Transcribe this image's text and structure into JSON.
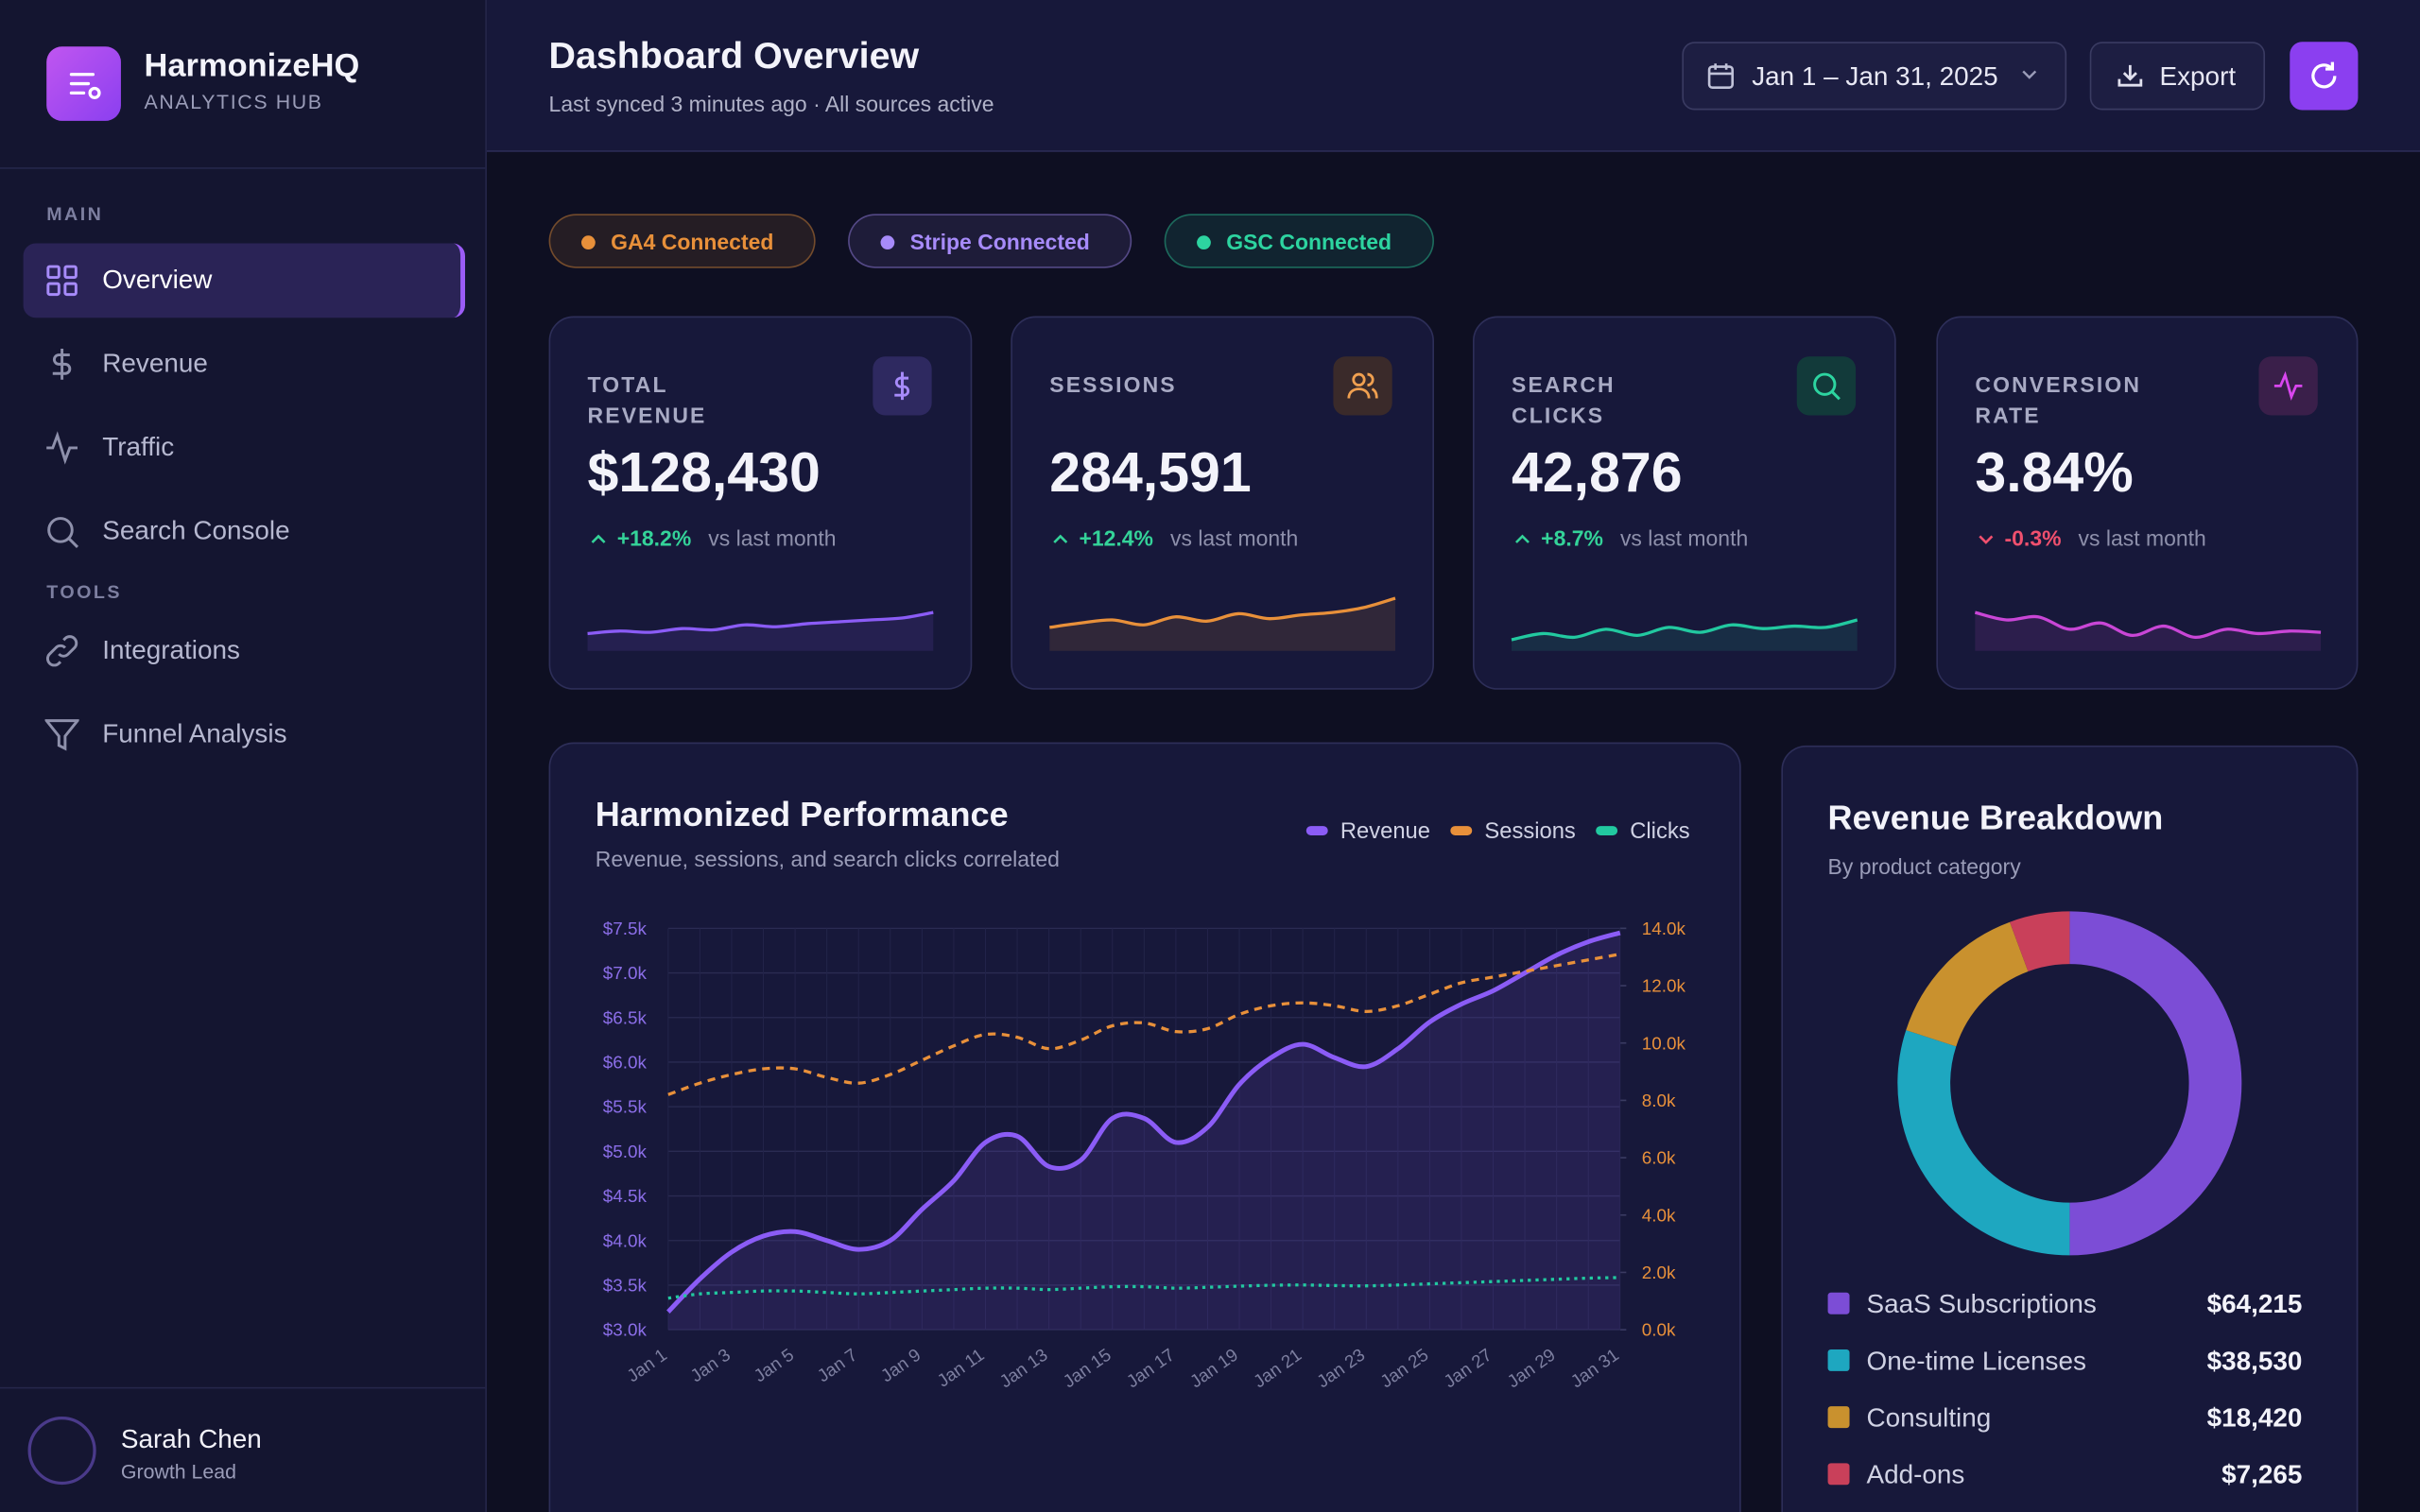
{
  "sidebar": {
    "brand": "HarmonizeHQ",
    "tagline": "ANALYTICS HUB",
    "sections": [
      {
        "title": "MAIN",
        "items": [
          "Overview",
          "Revenue",
          "Traffic",
          "Search Console"
        ]
      },
      {
        "title": "TOOLS",
        "items": [
          "Integrations",
          "Funnel Analysis"
        ]
      }
    ],
    "user": {
      "name": "Sarah Chen",
      "role": "Growth Lead"
    }
  },
  "header": {
    "title": "Dashboard Overview",
    "subtitle": "Last synced 3 minutes ago · All sources active",
    "date_range": "Jan 1 – Jan 31, 2025",
    "export": "Export"
  },
  "badges": [
    {
      "label": "GA4 Connected",
      "color": "#e8903a"
    },
    {
      "label": "Stripe Connected",
      "color": "#a78bfa"
    },
    {
      "label": "GSC Connected",
      "color": "#2dd4a0"
    }
  ],
  "kpis": [
    {
      "label": "TOTAL REVENUE",
      "value": "$128,430",
      "change": "+18.2%",
      "comparison": "vs last month",
      "trend": "up",
      "color": "#8b5cf6",
      "sparkline": [
        28,
        32,
        30,
        36,
        34,
        42,
        39,
        44,
        47,
        50,
        53,
        62
      ],
      "sparkline_ylim": [
        0,
        100
      ]
    },
    {
      "label": "SESSIONS",
      "value": "284,591",
      "change": "+12.4%",
      "comparison": "vs last month",
      "trend": "up",
      "color": "#e8903a",
      "sparkline": [
        38,
        45,
        50,
        42,
        55,
        48,
        60,
        52,
        58,
        62,
        70,
        85
      ],
      "sparkline_ylim": [
        0,
        100
      ]
    },
    {
      "label": "SEARCH CLICKS",
      "value": "42,876",
      "change": "+8.7%",
      "comparison": "vs last month",
      "trend": "up",
      "color": "#22c9a0",
      "sparkline": [
        18,
        28,
        22,
        35,
        25,
        38,
        30,
        42,
        36,
        40,
        38,
        50
      ],
      "sparkline_ylim": [
        0,
        100
      ]
    },
    {
      "label": "CONVERSION RATE",
      "value": "3.84%",
      "change": "-0.3%",
      "comparison": "vs last month",
      "trend": "down",
      "color": "#c946d6",
      "sparkline": [
        62,
        50,
        55,
        35,
        45,
        25,
        40,
        22,
        35,
        28,
        32,
        30
      ],
      "sparkline_ylim": [
        0,
        100
      ]
    }
  ],
  "chart_data": [
    {
      "type": "line",
      "title": "Harmonized Performance",
      "subtitle": "Revenue, sessions, and search clicks correlated",
      "categories": [
        "Jan 1",
        null,
        "Jan 3",
        null,
        "Jan 5",
        null,
        "Jan 7",
        null,
        "Jan 9",
        null,
        "Jan 11",
        null,
        "Jan 13",
        null,
        "Jan 15",
        null,
        "Jan 17",
        null,
        "Jan 19",
        null,
        "Jan 21",
        null,
        "Jan 23",
        null,
        "Jan 25",
        null,
        "Jan 27",
        null,
        "Jan 29",
        null,
        "Jan 31"
      ],
      "series": [
        {
          "name": "Revenue",
          "color": "#8b5cf6",
          "style": "solid",
          "values": [
            3200,
            3570,
            3870,
            4050,
            4100,
            4000,
            3900,
            4000,
            4350,
            4670,
            5100,
            5170,
            4830,
            4900,
            5370,
            5370,
            5100,
            5270,
            5750,
            6050,
            6200,
            6050,
            5950,
            6150,
            6450,
            6650,
            6800,
            7000,
            7200,
            7350,
            7450
          ]
        },
        {
          "name": "Sessions",
          "color": "#e8903a",
          "style": "dashed",
          "axis": "y2",
          "values": [
            8200,
            8600,
            8900,
            9100,
            9100,
            8800,
            8600,
            8900,
            9400,
            9900,
            10300,
            10200,
            9800,
            10100,
            10600,
            10700,
            10400,
            10500,
            11000,
            11300,
            11400,
            11300,
            11100,
            11300,
            11700,
            12100,
            12300,
            12500,
            12700,
            12900,
            13100
          ]
        },
        {
          "name": "Clicks",
          "color": "#22c9a0",
          "style": "dotted",
          "axis": "y2",
          "values": [
            1100,
            1250,
            1300,
            1350,
            1350,
            1300,
            1250,
            1300,
            1350,
            1400,
            1450,
            1450,
            1400,
            1450,
            1500,
            1500,
            1450,
            1480,
            1520,
            1550,
            1560,
            1540,
            1530,
            1560,
            1600,
            1640,
            1680,
            1720,
            1760,
            1800,
            1820
          ]
        }
      ],
      "ylim": [
        3000,
        7500
      ],
      "yticks": [
        {
          "value": 3000,
          "label": "$3.0k"
        },
        {
          "value": 3500,
          "label": "$3.5k"
        },
        {
          "value": 4000,
          "label": "$4.0k"
        },
        {
          "value": 4500,
          "label": "$4.5k"
        },
        {
          "value": 5000,
          "label": "$5.0k"
        },
        {
          "value": 5500,
          "label": "$5.5k"
        },
        {
          "value": 6000,
          "label": "$6.0k"
        },
        {
          "value": 6500,
          "label": "$6.5k"
        },
        {
          "value": 7000,
          "label": "$7.0k"
        },
        {
          "value": 7500,
          "label": "$7.5k"
        }
      ],
      "y2lim": [
        0,
        14000
      ],
      "y2ticks": [
        {
          "value": 0,
          "label": "0.0k"
        },
        {
          "value": 2000,
          "label": "2.0k"
        },
        {
          "value": 4000,
          "label": "4.0k"
        },
        {
          "value": 6000,
          "label": "6.0k"
        },
        {
          "value": 8000,
          "label": "8.0k"
        },
        {
          "value": 10000,
          "label": "10.0k"
        },
        {
          "value": 12000,
          "label": "12.0k"
        },
        {
          "value": 14000,
          "label": "14.0k"
        }
      ],
      "grid": true,
      "legend": "top-right"
    },
    {
      "type": "donut",
      "title": "Revenue Breakdown",
      "subtitle": "By product category",
      "categories": [
        "SaaS Subscriptions",
        "One-time Licenses",
        "Consulting",
        "Add-ons"
      ],
      "values": [
        64215,
        38530,
        18420,
        7265
      ],
      "value_labels": [
        "$64,215",
        "$38,530",
        "$18,420",
        "$7,265"
      ],
      "colors": [
        "#7c4dd6",
        "#1ea7c0",
        "#c9912e",
        "#c9405a"
      ]
    }
  ]
}
